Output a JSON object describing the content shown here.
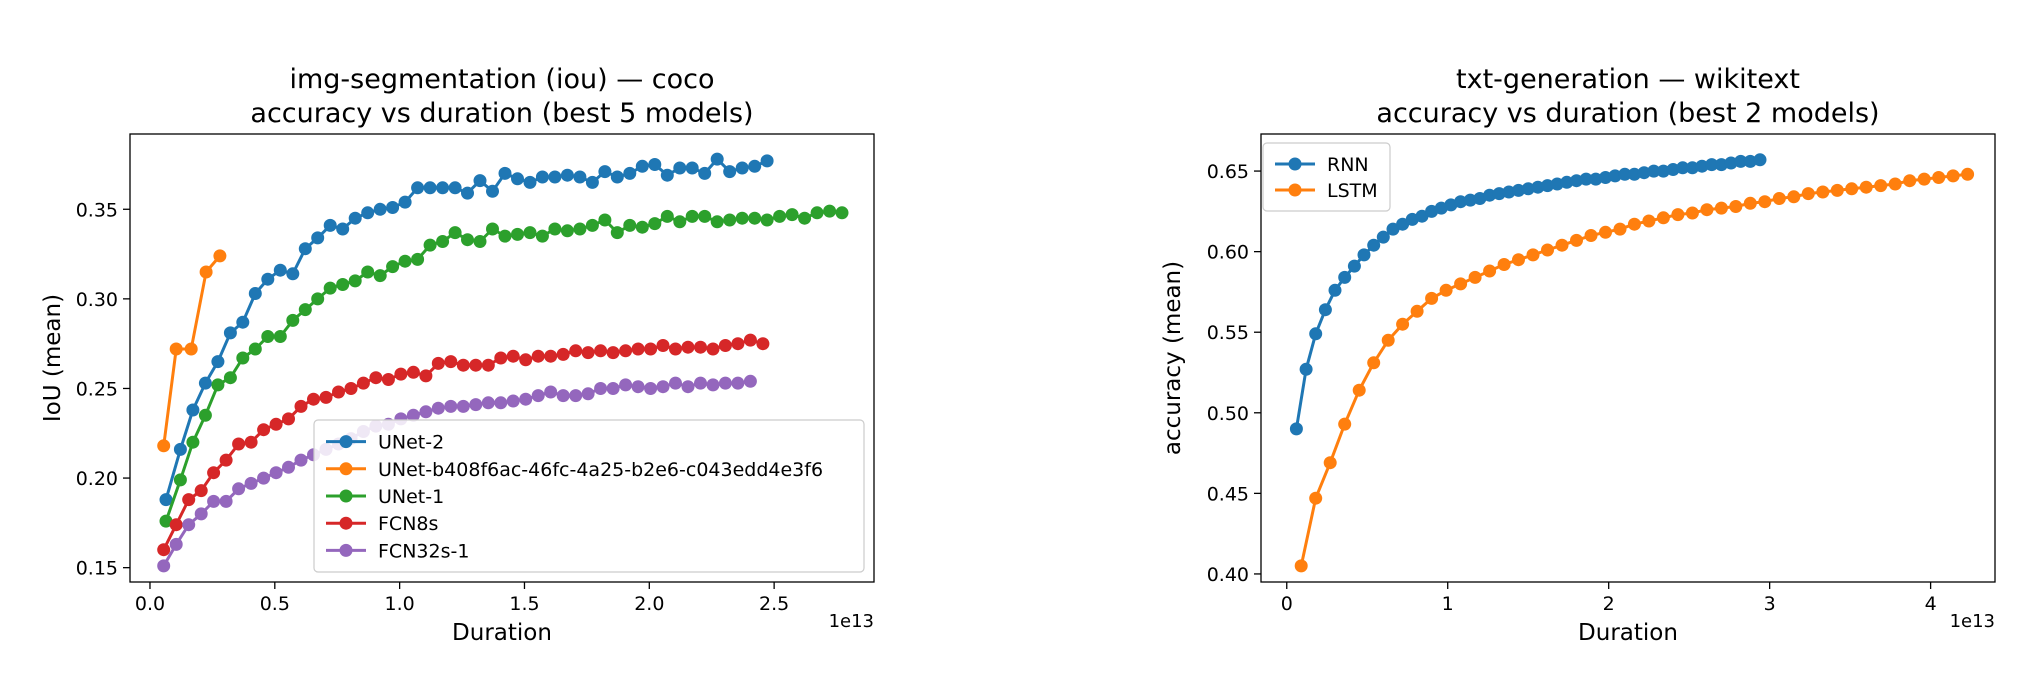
{
  "chart_data": [
    {
      "type": "line",
      "title": "img-segmentation (iou) — coco\naccuracy vs duration (best 5 models)",
      "title_lines": [
        "img-segmentation (iou) — coco",
        "accuracy vs duration (best 5 models)"
      ],
      "xlabel": "Duration",
      "ylabel": "IoU (mean)",
      "x_offset_label": "1e13",
      "xlim": [
        -0.08,
        2.9
      ],
      "ylim": [
        0.142,
        0.392
      ],
      "xticks": [
        0.0,
        0.5,
        1.0,
        1.5,
        2.0,
        2.5
      ],
      "xtick_labels": [
        "0.0",
        "0.5",
        "1.0",
        "1.5",
        "2.0",
        "2.5"
      ],
      "yticks": [
        0.15,
        0.2,
        0.25,
        0.3,
        0.35
      ],
      "ytick_labels": [
        "0.15",
        "0.20",
        "0.25",
        "0.30",
        "0.35"
      ],
      "legend_position": "lower-right",
      "series": [
        {
          "name": "UNet-2",
          "color": "#1f77b4",
          "x": [
            0.064,
            0.122,
            0.172,
            0.222,
            0.272,
            0.322,
            0.372,
            0.422,
            0.472,
            0.522,
            0.572,
            0.622,
            0.672,
            0.722,
            0.772,
            0.822,
            0.872,
            0.922,
            0.972,
            1.022,
            1.072,
            1.122,
            1.172,
            1.222,
            1.272,
            1.322,
            1.372,
            1.422,
            1.472,
            1.522,
            1.572,
            1.622,
            1.672,
            1.722,
            1.772,
            1.822,
            1.872,
            1.922,
            1.972,
            2.022,
            2.072,
            2.122,
            2.172,
            2.222,
            2.272,
            2.322,
            2.372,
            2.422,
            2.472
          ],
          "y": [
            0.188,
            0.216,
            0.238,
            0.253,
            0.265,
            0.281,
            0.287,
            0.303,
            0.311,
            0.316,
            0.314,
            0.328,
            0.334,
            0.341,
            0.339,
            0.345,
            0.348,
            0.35,
            0.351,
            0.354,
            0.362,
            0.362,
            0.362,
            0.362,
            0.359,
            0.366,
            0.36,
            0.37,
            0.367,
            0.365,
            0.368,
            0.368,
            0.369,
            0.368,
            0.365,
            0.371,
            0.368,
            0.37,
            0.374,
            0.375,
            0.369,
            0.373,
            0.373,
            0.37,
            0.378,
            0.371,
            0.373,
            0.374,
            0.377
          ]
        },
        {
          "name": "UNet-b408f6ac-46fc-4a25-b2e6-c043edd4e3f6",
          "color": "#ff7f0e",
          "x": [
            0.055,
            0.105,
            0.165,
            0.225,
            0.28
          ],
          "y": [
            0.218,
            0.272,
            0.272,
            0.315,
            0.324
          ]
        },
        {
          "name": "UNet-1",
          "color": "#2ca02c",
          "x": [
            0.064,
            0.122,
            0.172,
            0.222,
            0.272,
            0.322,
            0.372,
            0.422,
            0.472,
            0.522,
            0.572,
            0.622,
            0.672,
            0.722,
            0.772,
            0.822,
            0.872,
            0.922,
            0.972,
            1.022,
            1.072,
            1.122,
            1.172,
            1.222,
            1.272,
            1.322,
            1.372,
            1.422,
            1.472,
            1.522,
            1.572,
            1.622,
            1.672,
            1.722,
            1.772,
            1.822,
            1.872,
            1.922,
            1.972,
            2.022,
            2.072,
            2.122,
            2.172,
            2.222,
            2.272,
            2.322,
            2.372,
            2.422,
            2.472,
            2.522,
            2.572,
            2.622,
            2.672,
            2.722,
            2.772
          ],
          "y": [
            0.176,
            0.199,
            0.22,
            0.235,
            0.252,
            0.256,
            0.267,
            0.272,
            0.279,
            0.279,
            0.288,
            0.294,
            0.3,
            0.306,
            0.308,
            0.31,
            0.315,
            0.313,
            0.318,
            0.321,
            0.322,
            0.33,
            0.332,
            0.337,
            0.333,
            0.332,
            0.339,
            0.335,
            0.336,
            0.337,
            0.335,
            0.339,
            0.338,
            0.339,
            0.341,
            0.344,
            0.337,
            0.341,
            0.34,
            0.342,
            0.346,
            0.343,
            0.346,
            0.346,
            0.343,
            0.344,
            0.345,
            0.345,
            0.344,
            0.346,
            0.347,
            0.345,
            0.348,
            0.349,
            0.348
          ]
        },
        {
          "name": "FCN8s",
          "color": "#d62728",
          "x": [
            0.055,
            0.105,
            0.155,
            0.205,
            0.255,
            0.305,
            0.355,
            0.405,
            0.455,
            0.505,
            0.555,
            0.605,
            0.655,
            0.705,
            0.755,
            0.805,
            0.855,
            0.905,
            0.955,
            1.005,
            1.055,
            1.105,
            1.155,
            1.205,
            1.255,
            1.305,
            1.355,
            1.405,
            1.455,
            1.505,
            1.555,
            1.605,
            1.655,
            1.705,
            1.755,
            1.805,
            1.855,
            1.905,
            1.955,
            2.005,
            2.055,
            2.105,
            2.155,
            2.205,
            2.255,
            2.305,
            2.355,
            2.405,
            2.455
          ],
          "y": [
            0.16,
            0.174,
            0.188,
            0.193,
            0.203,
            0.21,
            0.219,
            0.22,
            0.227,
            0.23,
            0.233,
            0.24,
            0.244,
            0.245,
            0.248,
            0.25,
            0.253,
            0.256,
            0.255,
            0.258,
            0.259,
            0.257,
            0.264,
            0.265,
            0.263,
            0.263,
            0.263,
            0.267,
            0.268,
            0.266,
            0.268,
            0.268,
            0.269,
            0.271,
            0.27,
            0.271,
            0.27,
            0.271,
            0.272,
            0.272,
            0.274,
            0.272,
            0.273,
            0.273,
            0.272,
            0.274,
            0.275,
            0.277,
            0.275
          ]
        },
        {
          "name": "FCN32s-1",
          "color": "#9467bd",
          "x": [
            0.055,
            0.105,
            0.155,
            0.205,
            0.255,
            0.305,
            0.355,
            0.405,
            0.455,
            0.505,
            0.555,
            0.605,
            0.655,
            0.705,
            0.755,
            0.805,
            0.855,
            0.905,
            0.955,
            1.005,
            1.055,
            1.105,
            1.155,
            1.205,
            1.255,
            1.305,
            1.355,
            1.405,
            1.455,
            1.505,
            1.555,
            1.605,
            1.655,
            1.705,
            1.755,
            1.805,
            1.855,
            1.905,
            1.955,
            2.005,
            2.055,
            2.105,
            2.155,
            2.205,
            2.255,
            2.305,
            2.355,
            2.405
          ],
          "y": [
            0.151,
            0.163,
            0.174,
            0.18,
            0.187,
            0.187,
            0.194,
            0.197,
            0.2,
            0.203,
            0.206,
            0.21,
            0.213,
            0.216,
            0.219,
            0.222,
            0.226,
            0.229,
            0.23,
            0.233,
            0.235,
            0.237,
            0.239,
            0.24,
            0.24,
            0.241,
            0.242,
            0.242,
            0.243,
            0.244,
            0.246,
            0.248,
            0.246,
            0.246,
            0.247,
            0.25,
            0.25,
            0.252,
            0.251,
            0.25,
            0.251,
            0.253,
            0.251,
            0.253,
            0.252,
            0.253,
            0.253,
            0.254
          ]
        }
      ]
    },
    {
      "type": "line",
      "title": "txt-generation — wikitext\naccuracy vs duration (best 2 models)",
      "title_lines": [
        "txt-generation — wikitext",
        "accuracy vs duration (best 2 models)"
      ],
      "xlabel": "Duration",
      "ylabel": "accuracy (mean)",
      "x_offset_label": "1e13",
      "xlim": [
        -0.16,
        4.4
      ],
      "ylim": [
        0.395,
        0.673
      ],
      "xticks": [
        0,
        1,
        2,
        3,
        4
      ],
      "xtick_labels": [
        "0",
        "1",
        "2",
        "3",
        "4"
      ],
      "yticks": [
        0.4,
        0.45,
        0.5,
        0.55,
        0.6,
        0.65
      ],
      "ytick_labels": [
        "0.40",
        "0.45",
        "0.50",
        "0.55",
        "0.60",
        "0.65"
      ],
      "legend_position": "upper-left",
      "series": [
        {
          "name": "RNN",
          "color": "#1f77b4",
          "x": [
            0.06,
            0.12,
            0.18,
            0.24,
            0.3,
            0.36,
            0.42,
            0.48,
            0.54,
            0.6,
            0.66,
            0.72,
            0.78,
            0.84,
            0.9,
            0.96,
            1.02,
            1.08,
            1.14,
            1.2,
            1.26,
            1.32,
            1.38,
            1.44,
            1.5,
            1.56,
            1.62,
            1.68,
            1.74,
            1.8,
            1.86,
            1.92,
            1.98,
            2.04,
            2.1,
            2.16,
            2.22,
            2.28,
            2.34,
            2.4,
            2.46,
            2.52,
            2.58,
            2.64,
            2.7,
            2.76,
            2.82,
            2.88,
            2.94
          ],
          "y": [
            0.49,
            0.527,
            0.549,
            0.564,
            0.576,
            0.584,
            0.591,
            0.598,
            0.604,
            0.609,
            0.614,
            0.617,
            0.62,
            0.622,
            0.625,
            0.627,
            0.629,
            0.631,
            0.632,
            0.633,
            0.635,
            0.636,
            0.637,
            0.638,
            0.639,
            0.64,
            0.641,
            0.642,
            0.643,
            0.644,
            0.645,
            0.645,
            0.646,
            0.647,
            0.648,
            0.648,
            0.649,
            0.65,
            0.65,
            0.651,
            0.652,
            0.652,
            0.653,
            0.654,
            0.654,
            0.655,
            0.656,
            0.656,
            0.657
          ]
        },
        {
          "name": "LSTM",
          "color": "#ff7f0e",
          "x": [
            0.09,
            0.18,
            0.27,
            0.36,
            0.45,
            0.54,
            0.63,
            0.72,
            0.81,
            0.9,
            0.99,
            1.08,
            1.17,
            1.26,
            1.35,
            1.44,
            1.53,
            1.62,
            1.71,
            1.8,
            1.89,
            1.98,
            2.07,
            2.16,
            2.25,
            2.34,
            2.43,
            2.52,
            2.61,
            2.7,
            2.79,
            2.88,
            2.97,
            3.06,
            3.15,
            3.24,
            3.33,
            3.42,
            3.51,
            3.6,
            3.69,
            3.78,
            3.87,
            3.96,
            4.05,
            4.14,
            4.23
          ],
          "y": [
            0.405,
            0.447,
            0.469,
            0.493,
            0.514,
            0.531,
            0.545,
            0.555,
            0.563,
            0.571,
            0.576,
            0.58,
            0.584,
            0.588,
            0.592,
            0.595,
            0.598,
            0.601,
            0.604,
            0.607,
            0.61,
            0.612,
            0.614,
            0.617,
            0.619,
            0.621,
            0.623,
            0.624,
            0.626,
            0.627,
            0.628,
            0.63,
            0.631,
            0.633,
            0.634,
            0.636,
            0.637,
            0.638,
            0.639,
            0.64,
            0.641,
            0.642,
            0.644,
            0.645,
            0.646,
            0.647,
            0.648
          ]
        }
      ]
    }
  ]
}
